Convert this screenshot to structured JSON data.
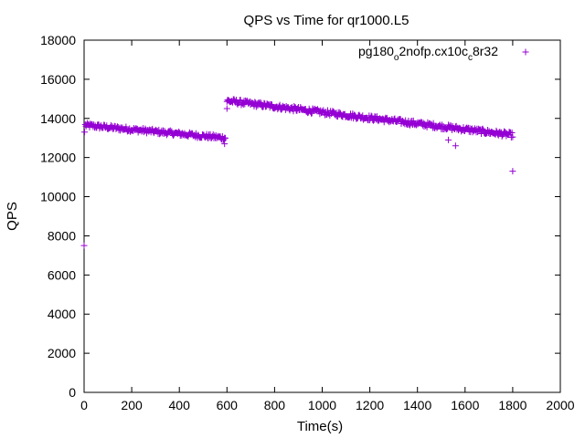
{
  "chart_data": {
    "type": "scatter",
    "title": "QPS vs Time for qr1000.L5",
    "xlabel": "Time(s)",
    "ylabel": "QPS",
    "xlim": [
      0,
      2000
    ],
    "ylim": [
      0,
      18000
    ],
    "xticks": [
      0,
      200,
      400,
      600,
      800,
      1000,
      1200,
      1400,
      1600,
      1800,
      2000
    ],
    "yticks": [
      0,
      2000,
      4000,
      6000,
      8000,
      10000,
      12000,
      14000,
      16000,
      18000
    ],
    "grid": false,
    "legend_position": "top-right",
    "marker": "+",
    "series": [
      {
        "name_parts": [
          "pg180",
          "o",
          "2nofp.cx10c",
          "c",
          "8r32"
        ],
        "color": "#9400d3",
        "segments": [
          {
            "x_start": 5,
            "x_end": 595,
            "y_start": 13650,
            "y_end": 13000,
            "step": 3,
            "noise": 120
          },
          {
            "x_start": 600,
            "x_end": 1800,
            "y_start": 14900,
            "y_end": 13150,
            "step": 3,
            "noise": 130
          }
        ],
        "outliers": [
          {
            "x": 0,
            "y": 7500
          },
          {
            "x": 2,
            "y": 13300
          },
          {
            "x": 590,
            "y": 12700
          },
          {
            "x": 600,
            "y": 14500
          },
          {
            "x": 1530,
            "y": 12900
          },
          {
            "x": 1560,
            "y": 12600
          },
          {
            "x": 1800,
            "y": 11300
          }
        ]
      }
    ]
  }
}
